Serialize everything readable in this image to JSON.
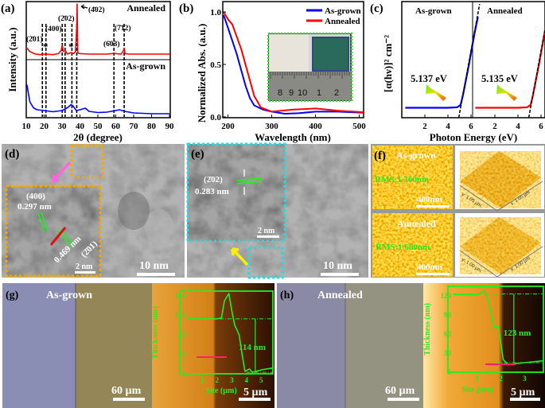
{
  "panels": {
    "a": {
      "label": "(a)",
      "top_label": "Annealed",
      "bottom_label": "As-grown",
      "ylabel": "Intensity (a.u.)",
      "xlabel": "2θ (degree)",
      "peaks": [
        "(2̄01)",
        "*",
        "(400)",
        "(2̄02)",
        "*",
        "(4̄02)",
        "(6̄03)",
        "(7̄12)"
      ]
    },
    "b": {
      "label": "(b)",
      "ylabel": "Normalized Abs. (a.u.)",
      "xlabel": "Wavelength (nm)",
      "legend": [
        "As-grown",
        "Annealed"
      ],
      "ruler_digits": [
        "8",
        "9",
        "10",
        "1",
        "2"
      ]
    },
    "c": {
      "label": "(c)",
      "ylabel": "[α(hν)]² cm⁻²",
      "xlabel": "Photon Energy (eV)",
      "left_title": "As-grown",
      "right_title": "Annealed",
      "left_gap": "5.137 eV",
      "right_gap": "5.135 eV"
    },
    "d": {
      "label": "(d)",
      "plane1": "(400)",
      "d1": "0.297 nm",
      "plane2": "(2̄01)",
      "d2": "0.469 nm",
      "inset_scale": "2 nm",
      "scale": "10 nm"
    },
    "e": {
      "label": "(e)",
      "plane": "(2̄02)",
      "d": "0.283 nm",
      "inset_scale": "2 nm",
      "scale": "10 nm"
    },
    "f": {
      "label": "(f)",
      "top_title": "As-grown",
      "top_rms": "RMS:1.360nm",
      "top_scale": "400nm",
      "top_y": "y: 1.05 µm",
      "top_x": "x: 1.05 µm",
      "bottom_title": "Annealed",
      "bottom_rms": "RMS:1.680nm",
      "bottom_scale": "400nm",
      "bottom_y": "y: 1.00 µm",
      "bottom_x": "x: 1.00 µm"
    },
    "g": {
      "label": "(g)",
      "title": "As-grown",
      "scale_optical": "60 µm",
      "scale_afm": "5 µm",
      "ylabel": "Thickness (nm)",
      "xlabel": "Site (µm)",
      "step": "114 nm"
    },
    "h": {
      "label": "(h)",
      "title": "Annealed",
      "scale_optical": "60 µm",
      "scale_afm": "5 µm",
      "ylabel": "Thickness (nm)",
      "xlabel": "Site (µm)",
      "step": "123 nm"
    }
  },
  "colors": {
    "as_grown": "#0000ff",
    "annealed": "#ff0000",
    "profile": "#22ee22",
    "marker": "#ff2266",
    "inset_d": "#f5a800",
    "inset_e": "#22dddd"
  },
  "chart_data": [
    {
      "type": "line",
      "panel": "a",
      "xlabel": "2θ (degree)",
      "ylabel": "Intensity (a.u.)",
      "xlim": [
        10,
        90
      ],
      "xticks": [
        10,
        20,
        30,
        40,
        50,
        60,
        70,
        80,
        90
      ],
      "series": [
        {
          "name": "Annealed",
          "x": [
            10,
            12,
            15,
            18,
            20,
            25,
            28,
            29.5,
            30.1,
            30.8,
            31.7,
            33,
            35,
            36.5,
            37.5,
            38.2,
            38.4,
            38.8,
            40,
            45,
            50,
            55,
            58,
            59,
            60,
            63,
            64.3,
            64.7,
            65.2,
            67,
            75,
            90
          ],
          "y": [
            0.16,
            0.08,
            0.03,
            0.02,
            0.03,
            0.02,
            0.04,
            0.1,
            0.2,
            0.08,
            0.1,
            0.03,
            0.06,
            0.04,
            0.08,
            0.6,
            1.0,
            0.05,
            0.04,
            0.03,
            0.03,
            0.03,
            0.04,
            0.05,
            0.04,
            0.03,
            0.1,
            0.14,
            0.04,
            0.03,
            0.03,
            0.03
          ]
        },
        {
          "name": "As-grown",
          "x": [
            10,
            10.5,
            12,
            14,
            16,
            20,
            25,
            30,
            33,
            35,
            36,
            38,
            40,
            43,
            45,
            50,
            55,
            60,
            62,
            65,
            70,
            80,
            90
          ],
          "y": [
            0.85,
            0.8,
            0.4,
            0.25,
            0.2,
            0.18,
            0.15,
            0.18,
            0.25,
            0.33,
            0.3,
            0.18,
            0.2,
            0.24,
            0.16,
            0.13,
            0.14,
            0.18,
            0.2,
            0.16,
            0.12,
            0.1,
            0.1
          ]
        }
      ],
      "dashed_x": [
        19,
        21,
        30.1,
        31.7,
        35.5,
        38.2,
        59,
        64.7
      ]
    },
    {
      "type": "line",
      "panel": "b",
      "xlabel": "Wavelength (nm)",
      "ylabel": "Normalized Abs. (a.u.)",
      "xlim": [
        190,
        510
      ],
      "ylim": [
        0,
        1.05
      ],
      "xticks": [
        200,
        300,
        400,
        500
      ],
      "yticks": [
        0.0,
        0.5,
        1.0
      ],
      "legend": "top-right",
      "series": [
        {
          "name": "As-grown",
          "x": [
            190,
            200,
            220,
            240,
            250,
            260,
            280,
            300,
            330,
            360,
            400,
            450,
            510
          ],
          "y": [
            0.97,
            0.85,
            0.6,
            0.3,
            0.18,
            0.11,
            0.07,
            0.05,
            0.03,
            0.035,
            0.05,
            0.05,
            0.04
          ]
        },
        {
          "name": "Annealed",
          "x": [
            190,
            200,
            210,
            230,
            250,
            260,
            275,
            300,
            350,
            400,
            450,
            510
          ],
          "y": [
            1.0,
            0.93,
            0.88,
            0.65,
            0.35,
            0.2,
            0.09,
            0.05,
            0.07,
            0.08,
            0.06,
            0.045
          ]
        }
      ]
    },
    {
      "type": "line",
      "panel": "c",
      "xlabel": "Photon Energy (eV)",
      "xticks": [
        2,
        4,
        6
      ],
      "series": [
        {
          "name": "As-grown",
          "x": [
            0.3,
            2,
            4,
            4.8,
            5.1,
            5.3,
            5.8,
            6.3,
            6.6
          ],
          "y": [
            0.02,
            0.02,
            0.02,
            0.025,
            0.05,
            0.15,
            0.45,
            0.78,
            0.95
          ]
        },
        {
          "name": "Annealed",
          "x": [
            0.3,
            2,
            4,
            4.8,
            5.1,
            5.3,
            5.8,
            6.3,
            6.6
          ],
          "y": [
            0.02,
            0.02,
            0.02,
            0.025,
            0.05,
            0.15,
            0.45,
            0.78,
            0.95
          ]
        }
      ],
      "band_gap_eV": [
        5.137,
        5.135
      ]
    },
    {
      "type": "line",
      "panel": "g",
      "xlabel": "Site (µm)",
      "ylabel": "Thickness (nm)",
      "xlim": [
        0,
        5.8
      ],
      "ylim": [
        0,
        170
      ],
      "xticks": [
        1,
        2,
        3,
        4,
        5
      ],
      "yticks": [
        0,
        40,
        80,
        120,
        160
      ],
      "series": [
        {
          "x": [
            0,
            2,
            2.3,
            2.5,
            2.8,
            3,
            3.2,
            3.5,
            3.7,
            3.9,
            4.2,
            4.4,
            5,
            5.8
          ],
          "y": [
            113,
            113,
            115,
            150,
            165,
            130,
            100,
            80,
            40,
            5,
            10,
            3,
            8,
            12
          ]
        }
      ]
    },
    {
      "type": "line",
      "panel": "h",
      "xlabel": "Site (µm)",
      "ylabel": "Thickness (nm)",
      "xlim": [
        0,
        3.8
      ],
      "ylim": [
        0,
        135
      ],
      "xticks": [
        1,
        2,
        3
      ],
      "yticks": [
        0,
        30,
        60,
        90,
        120
      ],
      "series": [
        {
          "x": [
            0,
            1,
            1.3,
            1.5,
            1.7,
            1.9,
            2.1,
            2.3,
            3,
            3.8
          ],
          "y": [
            122,
            122,
            128,
            110,
            70,
            72,
            20,
            12,
            15,
            18
          ]
        }
      ]
    }
  ]
}
